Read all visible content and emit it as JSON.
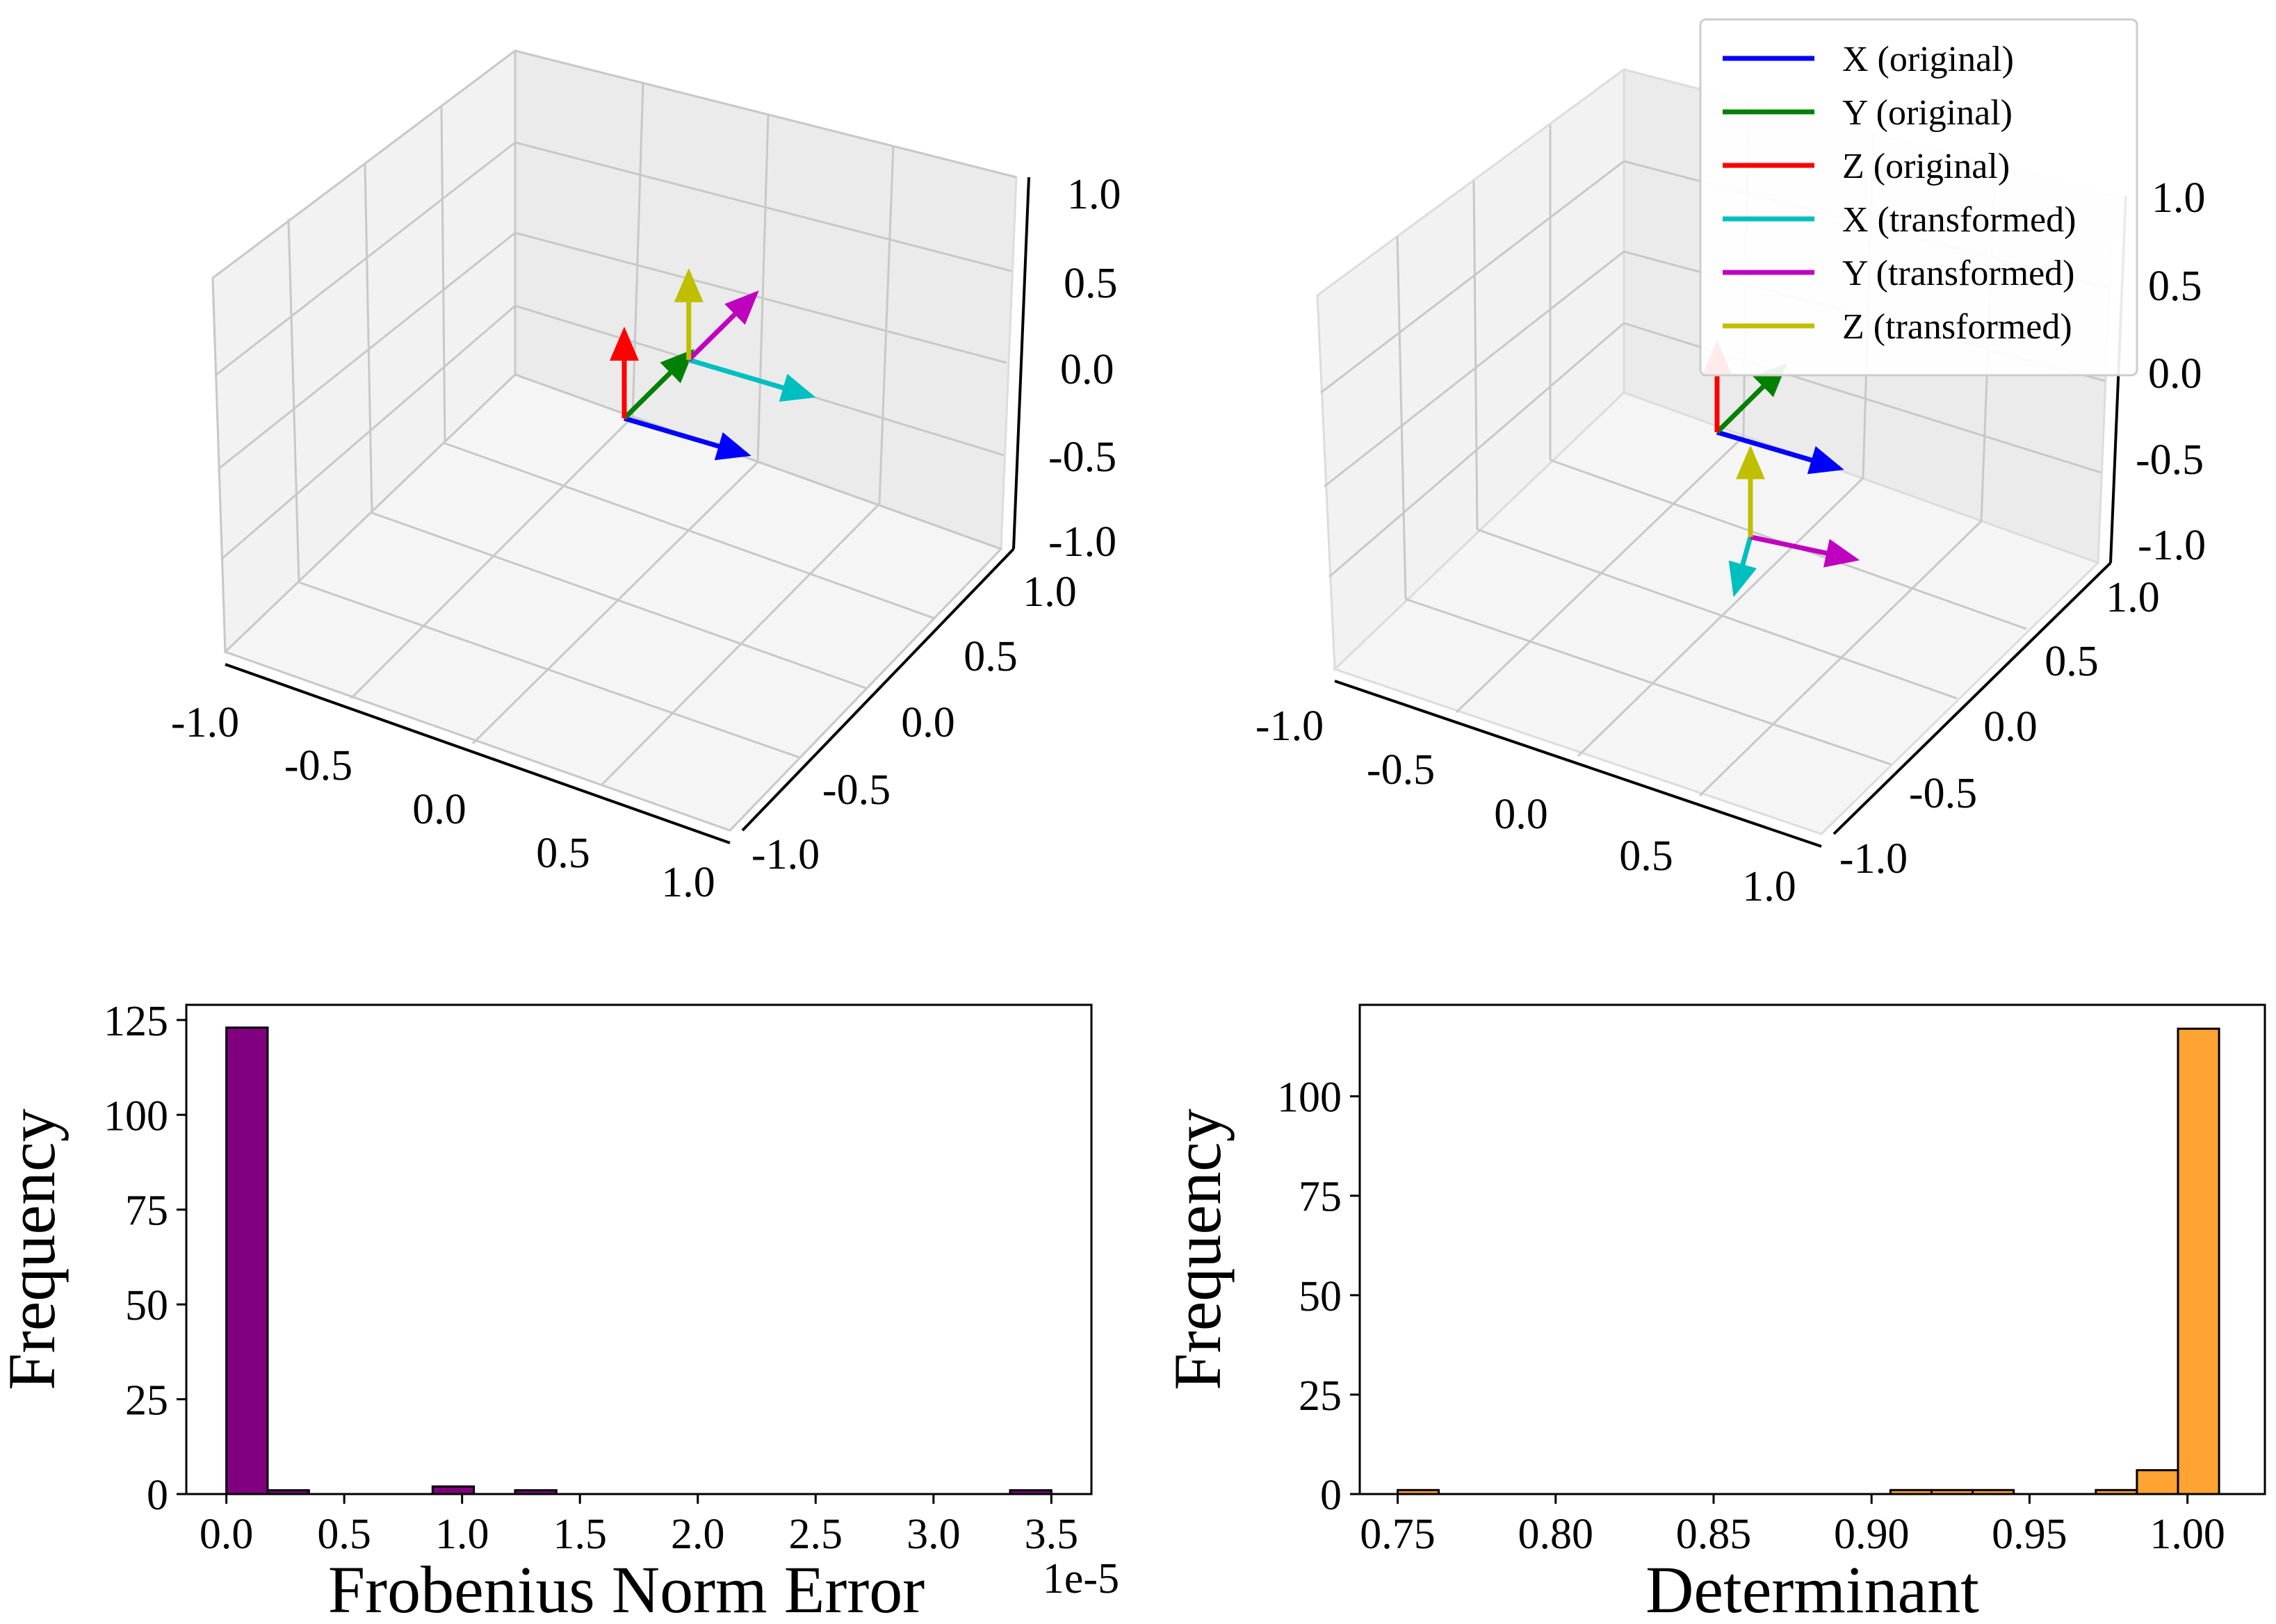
{
  "figure": {
    "panels": [
      "3d-original-vs-transformed-1",
      "3d-original-vs-transformed-2",
      "frobenius-histogram",
      "determinant-histogram"
    ]
  },
  "legend": {
    "entries": [
      {
        "label": "X (original)",
        "color": "#0000ff"
      },
      {
        "label": "Y (original)",
        "color": "#008000"
      },
      {
        "label": "Z (original)",
        "color": "#ff0000"
      },
      {
        "label": "X (transformed)",
        "color": "#00bfbf"
      },
      {
        "label": "Y (transformed)",
        "color": "#bf00bf"
      },
      {
        "label": "Z (transformed)",
        "color": "#bfbf00"
      }
    ]
  },
  "chart_data": [
    {
      "type": "3d-vectors",
      "xlim": [
        -1,
        1
      ],
      "ylim": [
        -1,
        1
      ],
      "zlim": [
        -1,
        1
      ],
      "x_ticks": [
        "-1.0",
        "-0.5",
        "0.0",
        "0.5",
        "1.0"
      ],
      "y_ticks": [
        "1.0",
        "0.5",
        "0.0",
        "-0.5",
        "-1.0"
      ],
      "z_ticks": [
        "1.0",
        "0.5",
        "0.0",
        "-0.5",
        "-1.0"
      ],
      "series": [
        {
          "name": "X (original)",
          "origin": [
            0,
            0,
            0
          ],
          "vector": [
            1,
            0,
            0
          ]
        },
        {
          "name": "Y (original)",
          "origin": [
            0,
            0,
            0
          ],
          "vector": [
            0,
            1,
            0
          ]
        },
        {
          "name": "Z (original)",
          "origin": [
            0,
            0,
            0
          ],
          "vector": [
            0,
            0,
            1
          ]
        },
        {
          "name": "X (transformed)",
          "origin": [
            0.2,
            0.6,
            0.3
          ],
          "vector": [
            1,
            0,
            0
          ]
        },
        {
          "name": "Y (transformed)",
          "origin": [
            0.2,
            0.6,
            0.3
          ],
          "vector": [
            0,
            1,
            0
          ]
        },
        {
          "name": "Z (transformed)",
          "origin": [
            0.2,
            0.6,
            0.3
          ],
          "vector": [
            0,
            0,
            1
          ]
        }
      ]
    },
    {
      "type": "3d-vectors",
      "xlim": [
        -1,
        1
      ],
      "ylim": [
        -1,
        1
      ],
      "zlim": [
        -1,
        1
      ],
      "x_ticks": [
        "-1.0",
        "-0.5",
        "0.0",
        "0.5",
        "1.0"
      ],
      "y_ticks": [
        "1.0",
        "0.5",
        "0.0",
        "-0.5",
        "-1.0"
      ],
      "z_ticks": [
        "1.0",
        "0.5",
        "0.0",
        "-0.5",
        "-1.0"
      ],
      "series": [
        {
          "name": "X (original)",
          "origin": [
            0,
            0,
            0
          ],
          "vector": [
            1,
            0,
            0
          ]
        },
        {
          "name": "Y (original)",
          "origin": [
            0,
            0,
            0
          ],
          "vector": [
            0,
            1,
            0
          ]
        },
        {
          "name": "Z (original)",
          "origin": [
            0,
            0,
            0
          ],
          "vector": [
            0,
            0,
            1
          ]
        },
        {
          "name": "X (transformed)",
          "origin": [
            0.6,
            -0.6,
            -0.5
          ],
          "vector": [
            0.2,
            -0.6,
            -0.1
          ]
        },
        {
          "name": "Y (transformed)",
          "origin": [
            0.6,
            -0.6,
            -0.5
          ],
          "vector": [
            0.8,
            0.1,
            0.0
          ]
        },
        {
          "name": "Z (transformed)",
          "origin": [
            0.6,
            -0.6,
            -0.5
          ],
          "vector": [
            0,
            0,
            1
          ]
        }
      ]
    },
    {
      "type": "bar",
      "subtype": "histogram",
      "xlabel": "Frobenius Norm Error",
      "ylabel": "Frequency",
      "offset_text": "1e-5",
      "xlim": [
        -0.17,
        3.67
      ],
      "ylim": [
        0,
        129
      ],
      "x_ticks": [
        "0.0",
        "0.5",
        "1.0",
        "1.5",
        "2.0",
        "2.5",
        "3.0",
        "3.5"
      ],
      "y_ticks": [
        "0",
        "25",
        "50",
        "75",
        "100",
        "125"
      ],
      "color": "#800080",
      "bin_edges": [
        0.0,
        0.175,
        0.35,
        0.525,
        0.7,
        0.875,
        1.05,
        1.225,
        1.4,
        1.575,
        1.75,
        1.925,
        2.1,
        2.275,
        2.45,
        2.625,
        2.8,
        2.975,
        3.15,
        3.325,
        3.5
      ],
      "values": [
        123,
        1,
        0,
        0,
        0,
        2,
        0,
        1,
        0,
        0,
        0,
        0,
        0,
        0,
        0,
        0,
        0,
        0,
        0,
        1
      ]
    },
    {
      "type": "bar",
      "subtype": "histogram",
      "xlabel": "Determinant",
      "ylabel": "Frequency",
      "xlim": [
        0.738,
        1.0245
      ],
      "ylim": [
        0,
        123
      ],
      "x_ticks": [
        "0.75",
        "0.80",
        "0.85",
        "0.90",
        "0.95",
        "1.00"
      ],
      "y_ticks": [
        "0",
        "25",
        "50",
        "75",
        "100"
      ],
      "color": "#ffa333",
      "bin_edges": [
        0.75,
        0.763,
        0.776,
        0.789,
        0.802,
        0.815,
        0.828,
        0.841,
        0.854,
        0.867,
        0.88,
        0.893,
        0.906,
        0.919,
        0.932,
        0.945,
        0.958,
        0.971,
        0.984,
        0.997,
        1.01
      ],
      "values": [
        1,
        0,
        0,
        0,
        0,
        0,
        0,
        0,
        0,
        0,
        0,
        0,
        1,
        1,
        1,
        0,
        0,
        1,
        6,
        117
      ]
    }
  ]
}
